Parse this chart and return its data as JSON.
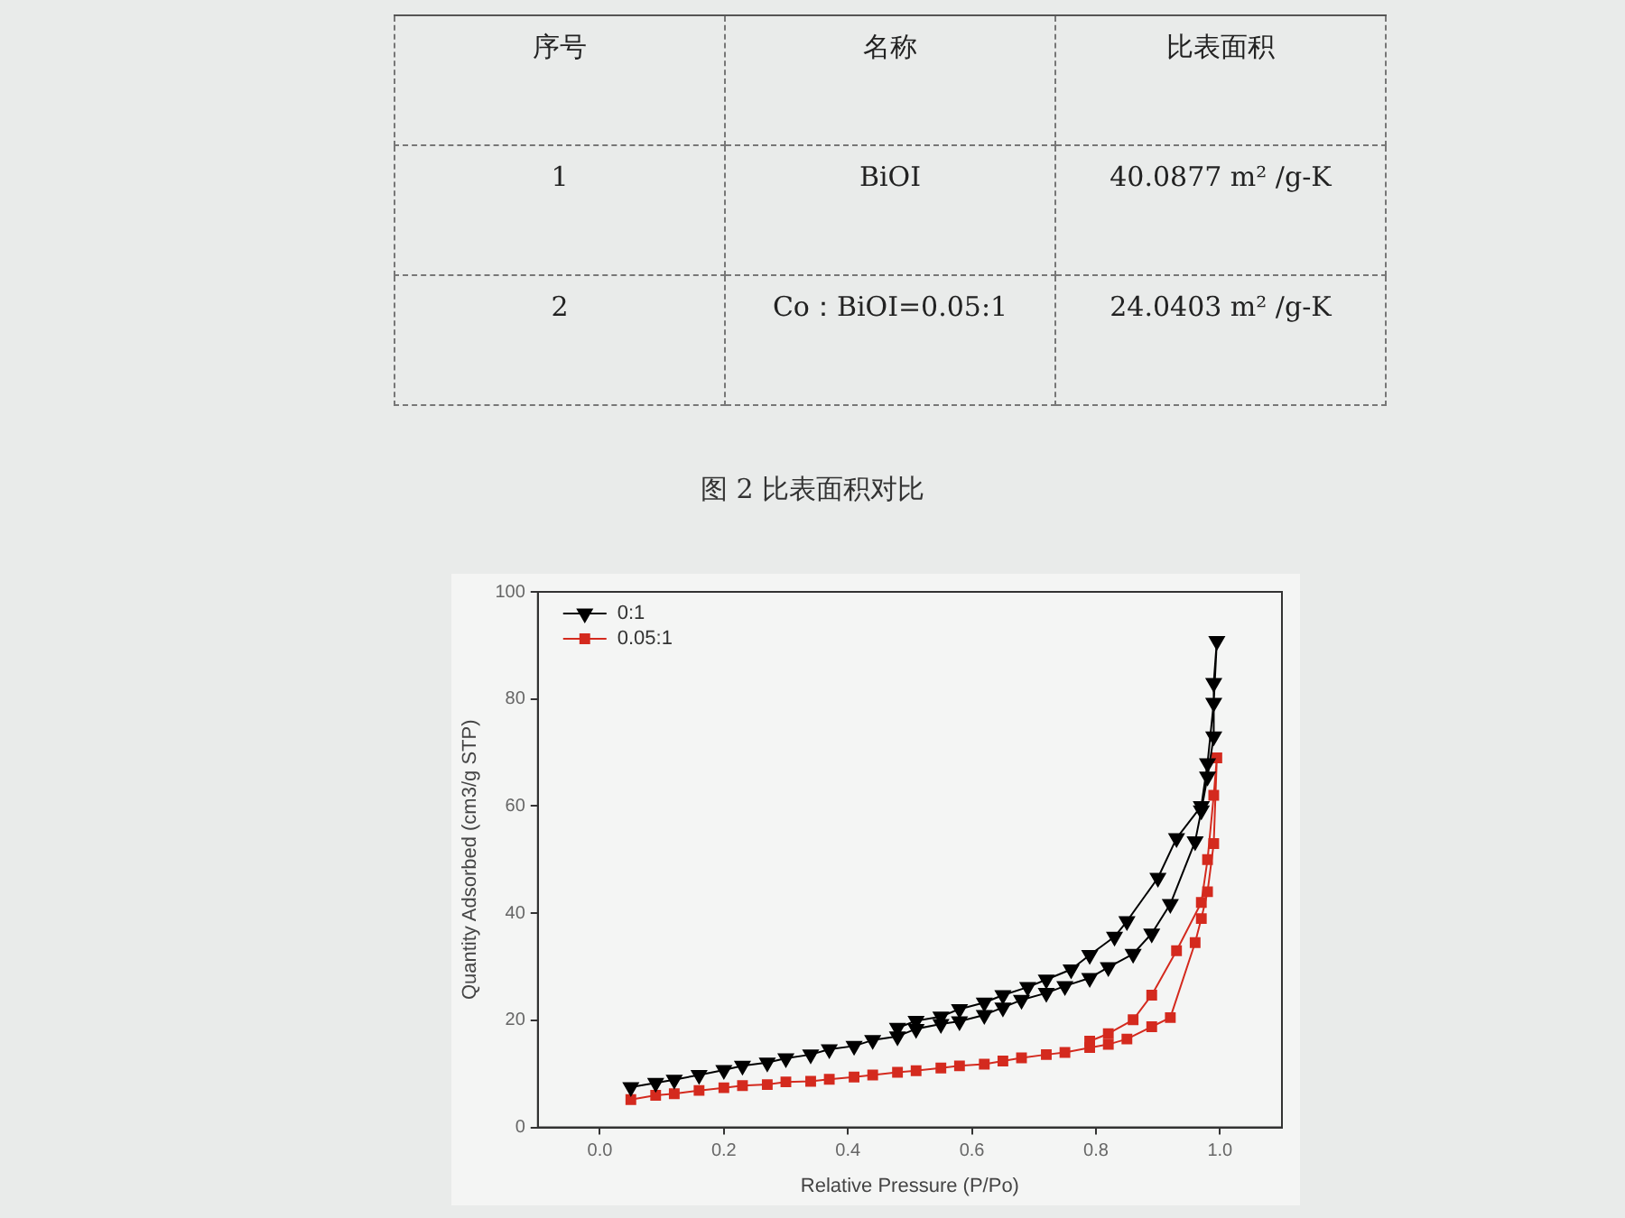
{
  "chart_data": {
    "type": "line",
    "annotations": [
      "序号",
      "名称",
      "比表面积",
      "1",
      "BiOI",
      "40.0877 m² /g-K",
      "2",
      "Co：BiOI=0.05:1",
      "24.0403 m² /g-K",
      "图 2  比表面积对比"
    ],
    "xlabel": "Relative Pressure (P/Po)",
    "ylabel": "Quantity Adsorbed (cm3/g STP)",
    "series": [
      {
        "name": "0:1",
        "color": "#000000",
        "marker": "triangle",
        "x": [
          0.05,
          0.09,
          0.12,
          0.16,
          0.2,
          0.23,
          0.27,
          0.3,
          0.34,
          0.37,
          0.41,
          0.44,
          0.48,
          0.51,
          0.55,
          0.58,
          0.62,
          0.65,
          0.68,
          0.72,
          0.75,
          0.79,
          0.82,
          0.86,
          0.89,
          0.92,
          0.96,
          0.97,
          0.98,
          0.99,
          0.99,
          0.995,
          0.99,
          0.98,
          0.97,
          0.93,
          0.9,
          0.85,
          0.83,
          0.79,
          0.76,
          0.72,
          0.69,
          0.65,
          0.62,
          0.58,
          0.55,
          0.51,
          0.48
        ],
        "values": [
          7.5,
          8.3,
          8.9,
          9.8,
          10.7,
          11.5,
          12.1,
          12.9,
          13.6,
          14.6,
          15.2,
          16.3,
          17.0,
          18.4,
          19.3,
          19.8,
          21.0,
          22.4,
          23.8,
          25.1,
          26.4,
          27.9,
          29.9,
          32.4,
          36.2,
          41.7,
          53.4,
          59.2,
          65.5,
          73.0,
          83.0,
          90.8,
          79.3,
          68.0,
          60.0,
          54.0,
          46.6,
          38.5,
          35.6,
          32.2,
          29.5,
          27.6,
          26.2,
          24.7,
          23.3,
          22.1,
          20.7,
          19.9,
          18.6
        ]
      },
      {
        "name": "0.05:1",
        "color": "#d42a1e",
        "marker": "square",
        "x": [
          0.05,
          0.09,
          0.12,
          0.16,
          0.2,
          0.23,
          0.27,
          0.3,
          0.34,
          0.37,
          0.41,
          0.44,
          0.48,
          0.51,
          0.55,
          0.58,
          0.62,
          0.65,
          0.68,
          0.72,
          0.75,
          0.79,
          0.82,
          0.85,
          0.89,
          0.92,
          0.96,
          0.97,
          0.98,
          0.99,
          0.995,
          0.99,
          0.98,
          0.97,
          0.93,
          0.89,
          0.86,
          0.82,
          0.79
        ],
        "values": [
          5.2,
          6.0,
          6.3,
          6.9,
          7.4,
          7.8,
          8.0,
          8.5,
          8.6,
          9.0,
          9.4,
          9.8,
          10.3,
          10.6,
          11.1,
          11.5,
          11.8,
          12.4,
          13.0,
          13.6,
          14.0,
          14.9,
          15.5,
          16.5,
          18.8,
          20.5,
          34.5,
          39.0,
          44.0,
          53.0,
          69.0,
          62.0,
          50.0,
          42.0,
          33.0,
          24.7,
          20.1,
          17.5,
          16.1
        ]
      }
    ],
    "xlim": [
      -0.1,
      1.1
    ],
    "ylim": [
      0,
      100
    ],
    "xticks": [
      {
        "value": 0,
        "label": "0.0"
      },
      {
        "value": 0.2,
        "label": "0.2"
      },
      {
        "value": 0.4,
        "label": "0.4"
      },
      {
        "value": 0.6,
        "label": "0.6"
      },
      {
        "value": 0.8,
        "label": "0.8"
      },
      {
        "value": 1,
        "label": "1.0"
      }
    ],
    "yticks": [
      0,
      20,
      40,
      60,
      80,
      100
    ],
    "grid": false,
    "legend": "top left",
    "line_style": "solid"
  }
}
